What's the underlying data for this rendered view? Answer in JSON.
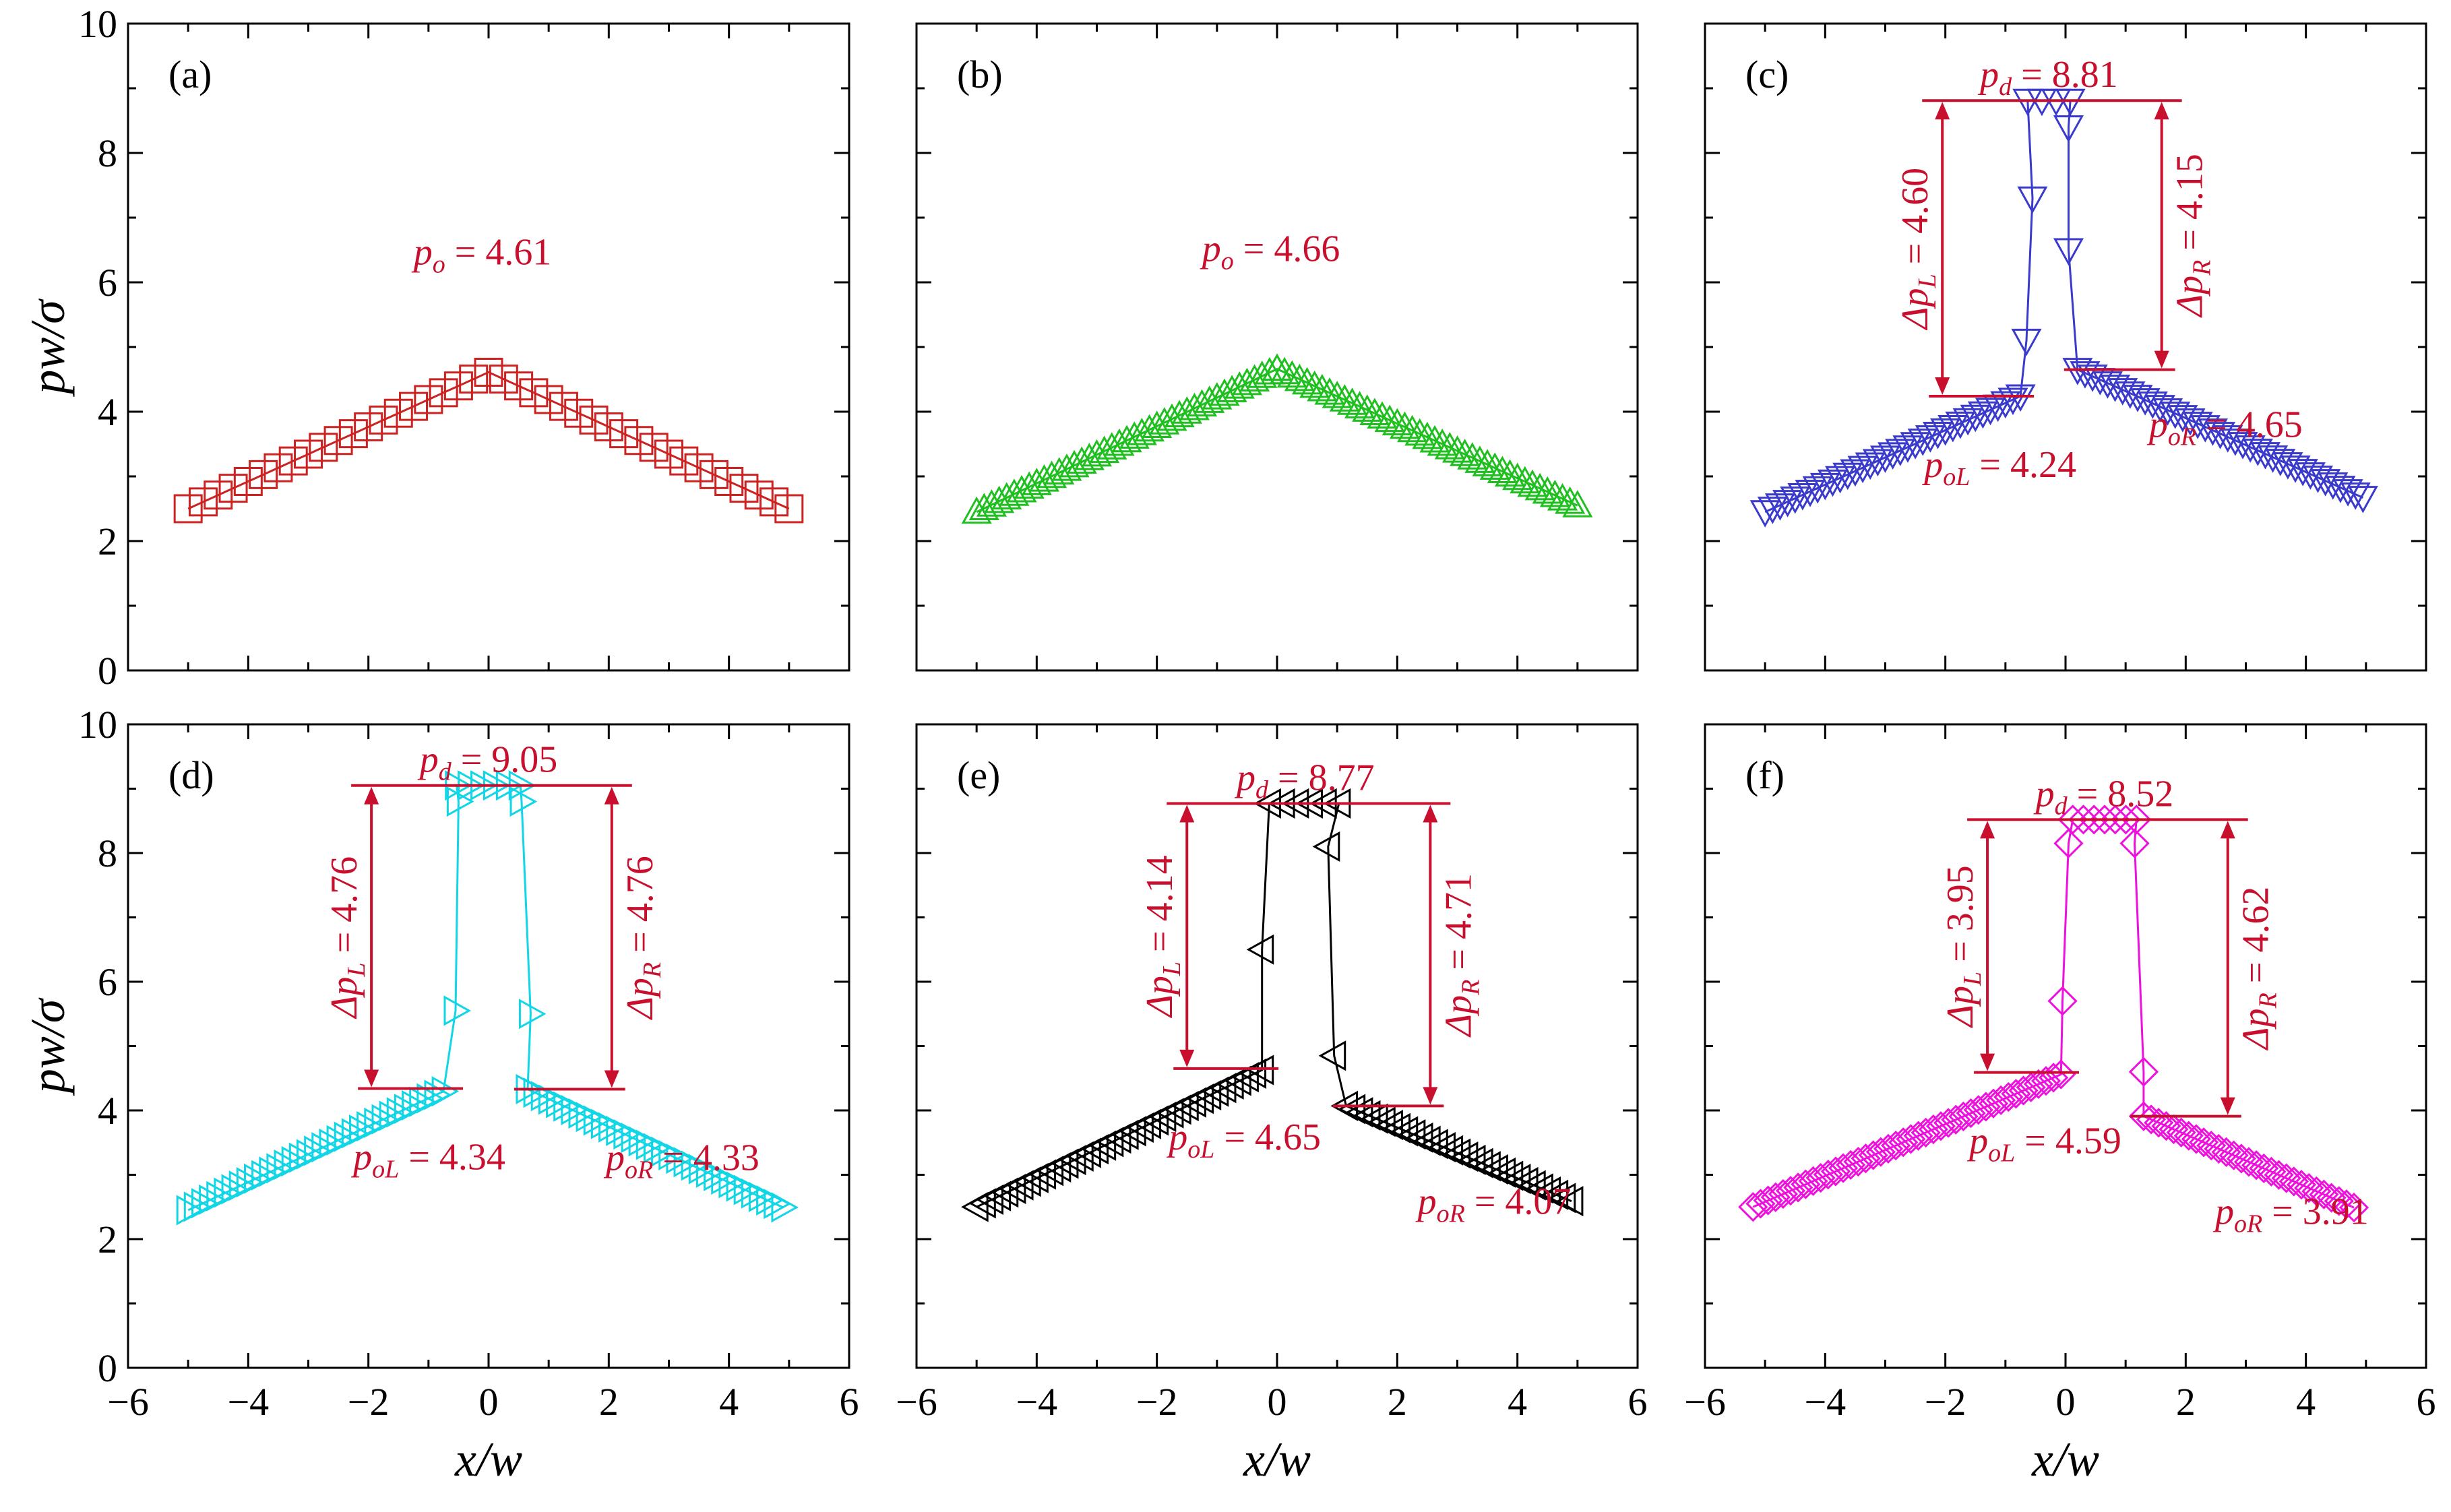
{
  "figure": {
    "x_axis_label": "x/w",
    "y_axis_label": "pw/σ",
    "x_ticks": [
      "−6",
      "−4",
      "−2",
      "0",
      "2",
      "4",
      "6"
    ],
    "y_ticks": [
      "0",
      "2",
      "4",
      "6",
      "8",
      "10"
    ]
  },
  "chart_data": [
    {
      "panel": "(a)",
      "type": "scatter",
      "color": "#cc2222",
      "marker": "square",
      "xlim": [
        -6,
        6
      ],
      "ylim": [
        0,
        10
      ],
      "xlabel": "x/w",
      "ylabel": "pw/σ",
      "profile": {
        "x_start": -5,
        "x_end": 5,
        "step": 0.25,
        "y_start": 2.5,
        "y_end": 2.5,
        "x_left_peak": 0,
        "x_right_peak": 0,
        "peak_left": 4.61,
        "peak_right": 4.61,
        "plateau": null,
        "plateau_markers": 0,
        "left_markers": [],
        "right_markers": []
      },
      "annotations": {
        "po": {
          "symbol": "p",
          "sub": "o",
          "eq": " = 4.61"
        }
      }
    },
    {
      "panel": "(b)",
      "type": "scatter",
      "color": "#1fbf1f",
      "marker": "triangle-up",
      "xlim": [
        -6,
        6
      ],
      "ylim": [
        0,
        10
      ],
      "xlabel": "x/w",
      "ylabel": "pw/σ",
      "profile": {
        "x_start": -5,
        "x_end": 5,
        "step": 0.125,
        "y_start": 2.45,
        "y_end": 2.55,
        "x_left_peak": 0,
        "x_right_peak": 0,
        "peak_left": 4.66,
        "peak_right": 4.66,
        "plateau": null,
        "plateau_markers": 0,
        "left_markers": [],
        "right_markers": []
      },
      "annotations": {
        "po": {
          "symbol": "p",
          "sub": "o",
          "eq": " = 4.66"
        }
      }
    },
    {
      "panel": "(c)",
      "type": "scatter",
      "color": "#3a3acc",
      "marker": "triangle-down",
      "xlim": [
        -6,
        6
      ],
      "ylim": [
        0,
        10
      ],
      "xlabel": "x/w",
      "ylabel": "pw/σ",
      "profile": {
        "x_start": -5,
        "x_end": 5,
        "step": 0.125,
        "y_start": 2.45,
        "y_end": 2.65,
        "x_left_peak": -0.75,
        "x_right_peak": 0.2,
        "peak_left": 4.24,
        "peak_right": 4.65,
        "plateau": 8.81,
        "plateau_markers": 4,
        "left_markers": [
          [
            -0.55,
            7.3
          ],
          [
            -0.65,
            5.1
          ]
        ],
        "right_markers": [
          [
            0.05,
            8.4
          ],
          [
            0.05,
            6.5
          ]
        ]
      },
      "annotations": {
        "pd": {
          "symbol": "p",
          "sub": "d",
          "eq": " = 8.81"
        },
        "dpL": {
          "symbol": "Δp",
          "sub": "L",
          "eq": " = 4.60"
        },
        "dpR": {
          "symbol": "Δp",
          "sub": "R",
          "eq": " = 4.15"
        },
        "poL": {
          "symbol": "p",
          "sub": "oL",
          "eq": " = 4.24"
        },
        "poR": {
          "symbol": "p",
          "sub": "oR",
          "eq": " = 4.65"
        }
      }
    },
    {
      "panel": "(d)",
      "type": "scatter",
      "color": "#12d6e6",
      "marker": "triangle-right",
      "xlim": [
        -6,
        6
      ],
      "ylim": [
        0,
        10
      ],
      "xlabel": "x/w",
      "ylabel": "pw/σ",
      "profile": {
        "x_start": -5,
        "x_end": 5,
        "step": 0.125,
        "y_start": 2.45,
        "y_end": 2.45,
        "x_left_peak": -0.65,
        "x_right_peak": 0.65,
        "peak_left": 4.34,
        "peak_right": 4.33,
        "plateau": 9.05,
        "plateau_markers": 6,
        "left_markers": [
          [
            -0.5,
            8.8
          ],
          [
            -0.55,
            5.55
          ]
        ],
        "right_markers": [
          [
            0.55,
            8.8
          ],
          [
            0.7,
            5.5
          ]
        ]
      },
      "annotations": {
        "pd": {
          "symbol": "p",
          "sub": "d",
          "eq": " = 9.05"
        },
        "dpL": {
          "symbol": "Δp",
          "sub": "L",
          "eq": " = 4.76"
        },
        "dpR": {
          "symbol": "Δp",
          "sub": "R",
          "eq": " = 4.76"
        },
        "poL": {
          "symbol": "p",
          "sub": "oL",
          "eq": " = 4.34"
        },
        "poR": {
          "symbol": "p",
          "sub": "oR",
          "eq": " = 4.33"
        }
      }
    },
    {
      "panel": "(e)",
      "type": "scatter",
      "color": "#000000",
      "marker": "triangle-left",
      "xlim": [
        -6,
        6
      ],
      "ylim": [
        0,
        10
      ],
      "xlabel": "x/w",
      "ylabel": "pw/σ",
      "profile": {
        "x_start": -5,
        "x_end": 5,
        "step": 0.125,
        "y_start": 2.5,
        "y_end": 2.55,
        "x_left_peak": -0.2,
        "x_right_peak": 1.15,
        "peak_left": 4.65,
        "peak_right": 4.07,
        "plateau": 8.77,
        "plateau_markers": 6,
        "left_markers": [
          [
            -0.25,
            6.5
          ]
        ],
        "right_markers": [
          [
            0.85,
            8.1
          ],
          [
            0.95,
            4.85
          ]
        ]
      },
      "annotations": {
        "pd": {
          "symbol": "p",
          "sub": "d",
          "eq": " = 8.77"
        },
        "dpL": {
          "symbol": "Δp",
          "sub": "L",
          "eq": " = 4.14"
        },
        "dpR": {
          "symbol": "Δp",
          "sub": "R",
          "eq": " = 4.71"
        },
        "poL": {
          "symbol": "p",
          "sub": "oL",
          "eq": " = 4.65"
        },
        "poR": {
          "symbol": "p",
          "sub": "oR",
          "eq": " = 4.07"
        }
      }
    },
    {
      "panel": "(f)",
      "type": "scatter",
      "color": "#ee11dd",
      "marker": "diamond",
      "xlim": [
        -6,
        6
      ],
      "ylim": [
        0,
        10
      ],
      "xlabel": "x/w",
      "ylabel": "pw/σ",
      "profile": {
        "x_start": -5.2,
        "x_end": 4.9,
        "step": 0.125,
        "y_start": 2.5,
        "y_end": 2.45,
        "x_left_peak": 0,
        "x_right_peak": 1.3,
        "peak_left": 4.59,
        "peak_right": 3.91,
        "plateau": 8.52,
        "plateau_markers": 7,
        "left_markers": [
          [
            0.05,
            8.15
          ],
          [
            -0.05,
            5.7
          ]
        ],
        "right_markers": [
          [
            1.15,
            8.15
          ],
          [
            1.3,
            4.6
          ]
        ]
      },
      "annotations": {
        "pd": {
          "symbol": "p",
          "sub": "d",
          "eq": " = 8.52"
        },
        "dpL": {
          "symbol": "Δp",
          "sub": "L",
          "eq": " = 3.95"
        },
        "dpR": {
          "symbol": "Δp",
          "sub": "R",
          "eq": " = 4.62"
        },
        "poL": {
          "symbol": "p",
          "sub": "oL",
          "eq": " = 4.59"
        },
        "poR": {
          "symbol": "p",
          "sub": "oR",
          "eq": " = 3.91"
        }
      }
    }
  ]
}
